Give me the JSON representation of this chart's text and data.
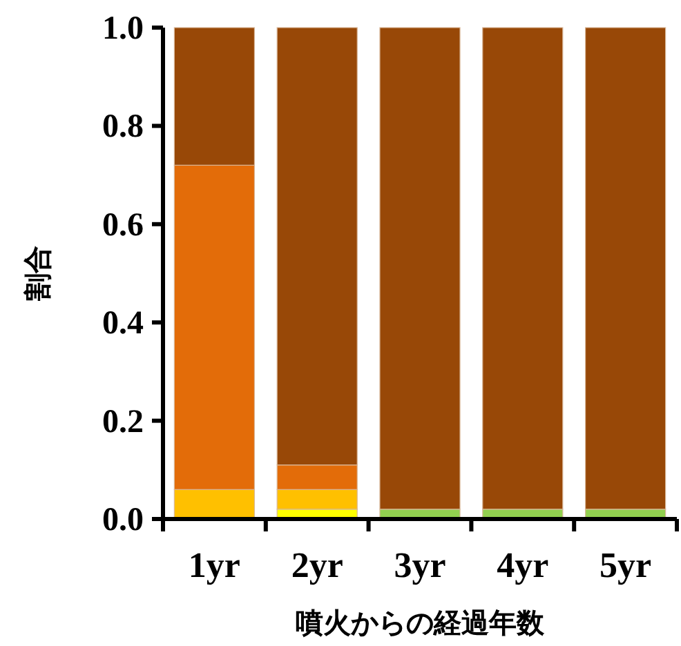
{
  "chart_data": {
    "type": "bar",
    "stacked": true,
    "xlabel": "噴火からの経過年数",
    "ylabel": "割合",
    "categories": [
      "1yr",
      "2yr",
      "3yr",
      "4yr",
      "5yr"
    ],
    "series": [
      {
        "color": "#ffff00",
        "values": [
          null,
          0.02,
          null,
          null,
          null
        ]
      },
      {
        "color": "#92d050",
        "values": [
          null,
          null,
          0.02,
          0.02,
          0.02
        ]
      },
      {
        "color": "#ffc000",
        "values": [
          0.06,
          0.04,
          null,
          null,
          null
        ]
      },
      {
        "color": "#e36c09",
        "values": [
          0.66,
          0.05,
          null,
          null,
          null
        ]
      },
      {
        "color": "#984807",
        "values": [
          0.28,
          0.89,
          0.98,
          0.98,
          0.98
        ]
      }
    ],
    "ylim": [
      0,
      1.0
    ],
    "yticks": [
      {
        "value": 0,
        "label": "0.0"
      },
      {
        "value": 0.2,
        "label": "0.2"
      },
      {
        "value": 0.4,
        "label": "0.4"
      },
      {
        "value": 0.6,
        "label": "0.6"
      },
      {
        "value": 0.8,
        "label": "0.8"
      },
      {
        "value": 1.0,
        "label": "1.0"
      }
    ],
    "grid": false
  }
}
